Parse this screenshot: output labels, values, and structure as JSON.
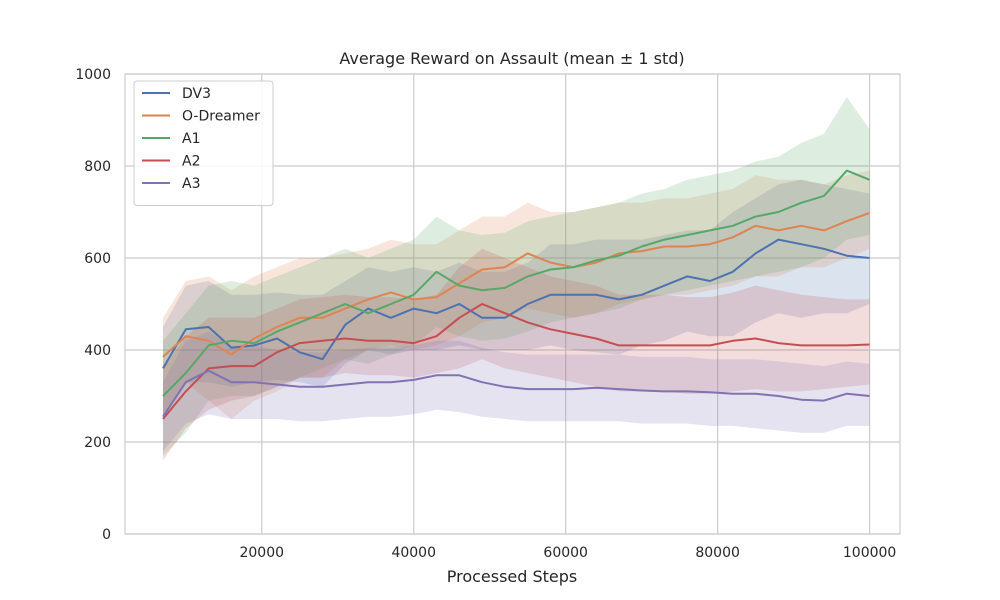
{
  "chart_data": {
    "type": "line",
    "title": "Average Reward on Assault (mean ± 1 std)",
    "xlabel": "Processed Steps",
    "ylabel": "",
    "xlim": [
      2000,
      104000
    ],
    "ylim": [
      0,
      1000
    ],
    "xticks": [
      20000,
      40000,
      60000,
      80000,
      100000
    ],
    "yticks": [
      0,
      200,
      400,
      600,
      800,
      1000
    ],
    "grid": true,
    "legend_position": "top-left",
    "shaded_band": "mean ± 1 std",
    "x": [
      7000,
      10000,
      13000,
      16000,
      19000,
      22000,
      25000,
      28000,
      31000,
      34000,
      37000,
      40000,
      43000,
      46000,
      49000,
      52000,
      55000,
      58000,
      61000,
      64000,
      67000,
      70000,
      73000,
      76000,
      79000,
      82000,
      85000,
      88000,
      91000,
      94000,
      97000,
      100000
    ],
    "series": [
      {
        "name": "DV3",
        "color": "#4c72b0",
        "mean": [
          360,
          445,
          450,
          405,
          410,
          425,
          395,
          380,
          455,
          490,
          470,
          490,
          480,
          500,
          470,
          470,
          500,
          520,
          520,
          520,
          510,
          520,
          540,
          560,
          550,
          570,
          610,
          640,
          630,
          620,
          605,
          600
        ],
        "lower": [
          250,
          330,
          330,
          320,
          330,
          335,
          330,
          320,
          370,
          400,
          390,
          400,
          400,
          410,
          400,
          400,
          400,
          410,
          400,
          395,
          390,
          410,
          420,
          440,
          430,
          430,
          460,
          480,
          470,
          480,
          480,
          500
        ],
        "upper": [
          450,
          540,
          550,
          520,
          520,
          525,
          520,
          520,
          550,
          580,
          570,
          580,
          570,
          590,
          570,
          570,
          590,
          630,
          630,
          640,
          640,
          640,
          650,
          660,
          660,
          700,
          730,
          760,
          770,
          760,
          750,
          740
        ]
      },
      {
        "name": "O-Dreamer",
        "color": "#dd8452",
        "mean": [
          385,
          430,
          420,
          390,
          425,
          450,
          470,
          470,
          490,
          510,
          525,
          510,
          515,
          545,
          575,
          580,
          610,
          590,
          580,
          590,
          610,
          615,
          625,
          625,
          630,
          645,
          670,
          660,
          670,
          660,
          680,
          698
        ],
        "lower": [
          260,
          330,
          290,
          250,
          290,
          310,
          340,
          340,
          380,
          400,
          410,
          400,
          410,
          430,
          460,
          470,
          490,
          480,
          470,
          480,
          500,
          510,
          520,
          520,
          530,
          540,
          560,
          560,
          580,
          580,
          600,
          620
        ],
        "upper": [
          470,
          550,
          560,
          530,
          560,
          580,
          600,
          600,
          610,
          620,
          640,
          630,
          630,
          660,
          690,
          690,
          720,
          700,
          700,
          710,
          720,
          720,
          730,
          730,
          740,
          750,
          780,
          770,
          770,
          760,
          780,
          790
        ]
      },
      {
        "name": "A1",
        "color": "#55a868",
        "mean": [
          300,
          350,
          410,
          420,
          415,
          440,
          460,
          480,
          500,
          480,
          500,
          520,
          570,
          540,
          530,
          535,
          560,
          575,
          580,
          595,
          605,
          625,
          640,
          650,
          660,
          670,
          690,
          700,
          720,
          735,
          790,
          770
        ],
        "lower": [
          170,
          220,
          290,
          300,
          300,
          320,
          340,
          360,
          380,
          370,
          390,
          410,
          450,
          430,
          420,
          425,
          440,
          460,
          470,
          480,
          490,
          510,
          520,
          530,
          540,
          550,
          560,
          570,
          580,
          600,
          640,
          650
        ],
        "upper": [
          420,
          480,
          540,
          550,
          540,
          560,
          580,
          600,
          620,
          600,
          620,
          640,
          690,
          660,
          650,
          655,
          680,
          690,
          700,
          710,
          720,
          740,
          750,
          770,
          780,
          790,
          810,
          820,
          850,
          870,
          950,
          880
        ]
      },
      {
        "name": "A2",
        "color": "#c44e52",
        "mean": [
          250,
          310,
          360,
          365,
          365,
          395,
          415,
          420,
          425,
          420,
          420,
          415,
          430,
          470,
          500,
          480,
          460,
          445,
          435,
          425,
          410,
          410,
          410,
          410,
          410,
          420,
          425,
          415,
          410,
          410,
          410,
          412
        ],
        "lower": [
          160,
          230,
          270,
          290,
          300,
          320,
          340,
          340,
          350,
          345,
          345,
          340,
          350,
          360,
          380,
          360,
          350,
          340,
          330,
          320,
          310,
          310,
          310,
          305,
          305,
          310,
          315,
          310,
          310,
          315,
          320,
          325
        ],
        "upper": [
          360,
          430,
          470,
          470,
          470,
          490,
          510,
          515,
          520,
          515,
          515,
          510,
          520,
          580,
          620,
          600,
          580,
          560,
          550,
          540,
          520,
          520,
          520,
          515,
          515,
          525,
          540,
          530,
          520,
          515,
          510,
          510
        ]
      },
      {
        "name": "A3",
        "color": "#8172b2",
        "mean": [
          255,
          330,
          355,
          330,
          330,
          325,
          320,
          320,
          325,
          330,
          330,
          335,
          345,
          345,
          330,
          320,
          315,
          315,
          315,
          318,
          315,
          312,
          310,
          310,
          308,
          305,
          305,
          300,
          292,
          290,
          305,
          300
        ],
        "lower": [
          180,
          240,
          260,
          250,
          250,
          250,
          245,
          245,
          250,
          255,
          255,
          260,
          270,
          265,
          255,
          250,
          245,
          245,
          245,
          245,
          245,
          240,
          240,
          240,
          235,
          235,
          230,
          225,
          220,
          220,
          235,
          235
        ],
        "upper": [
          330,
          420,
          440,
          410,
          410,
          400,
          395,
          395,
          400,
          405,
          405,
          410,
          420,
          420,
          405,
          395,
          390,
          390,
          390,
          390,
          390,
          385,
          385,
          385,
          380,
          380,
          380,
          375,
          370,
          365,
          375,
          370
        ]
      }
    ]
  }
}
